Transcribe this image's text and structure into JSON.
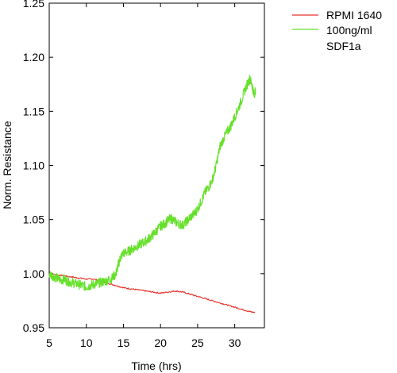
{
  "chart_data": {
    "type": "line",
    "xlabel": "Time (hrs)",
    "ylabel": "Norm. Resistance",
    "xlim": [
      5,
      34
    ],
    "ylim": [
      0.95,
      1.25
    ],
    "xticks": [
      "5",
      "10",
      "15",
      "20",
      "25",
      "30"
    ],
    "yticks": [
      "0.95",
      "1.00",
      "1.05",
      "1.10",
      "1.15",
      "1.20",
      "1.25"
    ],
    "grid": false,
    "legend_position": "outside-right",
    "series": [
      {
        "name": "RPMI 1640",
        "color": "#e8332b",
        "x": [
          5.0,
          6.0,
          7.0,
          8.0,
          9.0,
          10.0,
          11.0,
          12.0,
          13.0,
          14.0,
          15.0,
          16.0,
          17.0,
          18.0,
          19.0,
          20.0,
          21.0,
          22.0,
          23.0,
          24.0,
          25.0,
          26.0,
          27.0,
          28.0,
          29.0,
          30.0,
          31.0,
          32.0,
          32.7
        ],
        "y": [
          1.0,
          0.999,
          0.998,
          0.997,
          0.996,
          0.995,
          0.995,
          0.993,
          0.991,
          0.989,
          0.987,
          0.986,
          0.985,
          0.984,
          0.983,
          0.982,
          0.983,
          0.984,
          0.983,
          0.981,
          0.979,
          0.977,
          0.975,
          0.973,
          0.971,
          0.969,
          0.967,
          0.965,
          0.964
        ]
      },
      {
        "name": "100ng/ml SDF1a",
        "color": "#66e02a",
        "x": [
          5.0,
          5.5,
          6.0,
          6.5,
          7.0,
          7.5,
          8.0,
          8.5,
          9.0,
          9.5,
          10.0,
          10.5,
          11.0,
          11.5,
          12.0,
          12.5,
          13.0,
          13.5,
          14.0,
          14.3,
          14.6,
          15.0,
          15.5,
          16.0,
          16.5,
          17.0,
          17.5,
          18.0,
          18.5,
          19.0,
          19.5,
          20.0,
          20.5,
          21.0,
          21.5,
          22.0,
          22.5,
          23.0,
          23.5,
          24.0,
          24.5,
          25.0,
          25.5,
          26.0,
          26.5,
          27.0,
          27.5,
          28.0,
          28.5,
          29.0,
          29.5,
          30.0,
          30.5,
          31.0,
          31.5,
          32.0,
          32.3,
          32.6,
          32.8
        ],
        "y": [
          1.0,
          0.998,
          0.996,
          0.994,
          0.995,
          0.993,
          0.992,
          0.991,
          0.99,
          0.989,
          0.988,
          0.989,
          0.99,
          0.991,
          0.992,
          0.993,
          0.994,
          0.996,
          1.0,
          1.008,
          1.015,
          1.019,
          1.02,
          1.022,
          1.024,
          1.026,
          1.028,
          1.03,
          1.033,
          1.036,
          1.04,
          1.044,
          1.046,
          1.049,
          1.051,
          1.048,
          1.046,
          1.045,
          1.048,
          1.052,
          1.055,
          1.06,
          1.067,
          1.075,
          1.08,
          1.087,
          1.1,
          1.117,
          1.125,
          1.131,
          1.137,
          1.145,
          1.153,
          1.162,
          1.172,
          1.18,
          1.176,
          1.165,
          1.17
        ]
      }
    ]
  }
}
